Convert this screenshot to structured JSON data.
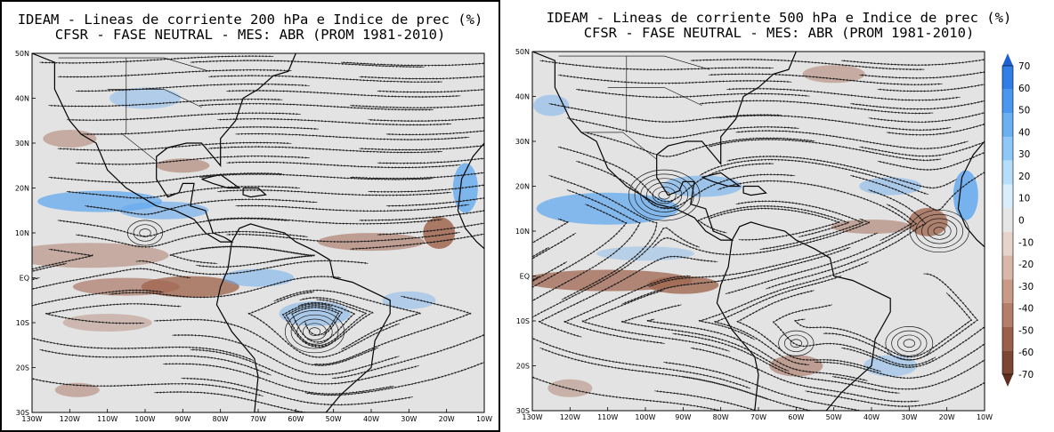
{
  "panels": [
    {
      "id": "left",
      "title_line1": "IDEAM - Lineas de corriente 200 hPa e Indice de prec (%)",
      "title_line2": "CFSR - FASE NEUTRAL - MES: ABR (PROM 1981-2010)"
    },
    {
      "id": "right",
      "title_line1": "IDEAM - Lineas de corriente 500 hPa e Indice de prec (%)",
      "title_line2": "CFSR - FASE NEUTRAL - MES: ABR (PROM 1981-2010)"
    }
  ],
  "lat_labels": [
    "50N",
    "40N",
    "30N",
    "20N",
    "10N",
    "EQ",
    "10S",
    "20S",
    "30S"
  ],
  "lon_labels": [
    "130W",
    "120W",
    "110W",
    "100W",
    "90W",
    "80W",
    "70W",
    "60W",
    "50W",
    "40W",
    "30W",
    "20W",
    "10W"
  ],
  "colorbar": {
    "labels": [
      "70",
      "60",
      "50",
      "40",
      "30",
      "20",
      "10",
      "0",
      "-10",
      "-20",
      "-30",
      "-40",
      "-50",
      "-60",
      "-70"
    ],
    "colors": [
      "#1f5fd6",
      "#2f7fe6",
      "#4a98ee",
      "#6ab0f2",
      "#8ec8f6",
      "#b4def9",
      "#d8eefb",
      "#e6e6e6",
      "#e6d4cc",
      "#d9b8aa",
      "#c99a88",
      "#b47e6a",
      "#9a604c",
      "#7d4634",
      "#5e2e20"
    ]
  },
  "colors": {
    "map_bg": "#e3e3e3",
    "land_line": "#000000",
    "streamline": "#1a1a1a",
    "wet": "#63a9ef",
    "dry": "#a06650"
  }
}
